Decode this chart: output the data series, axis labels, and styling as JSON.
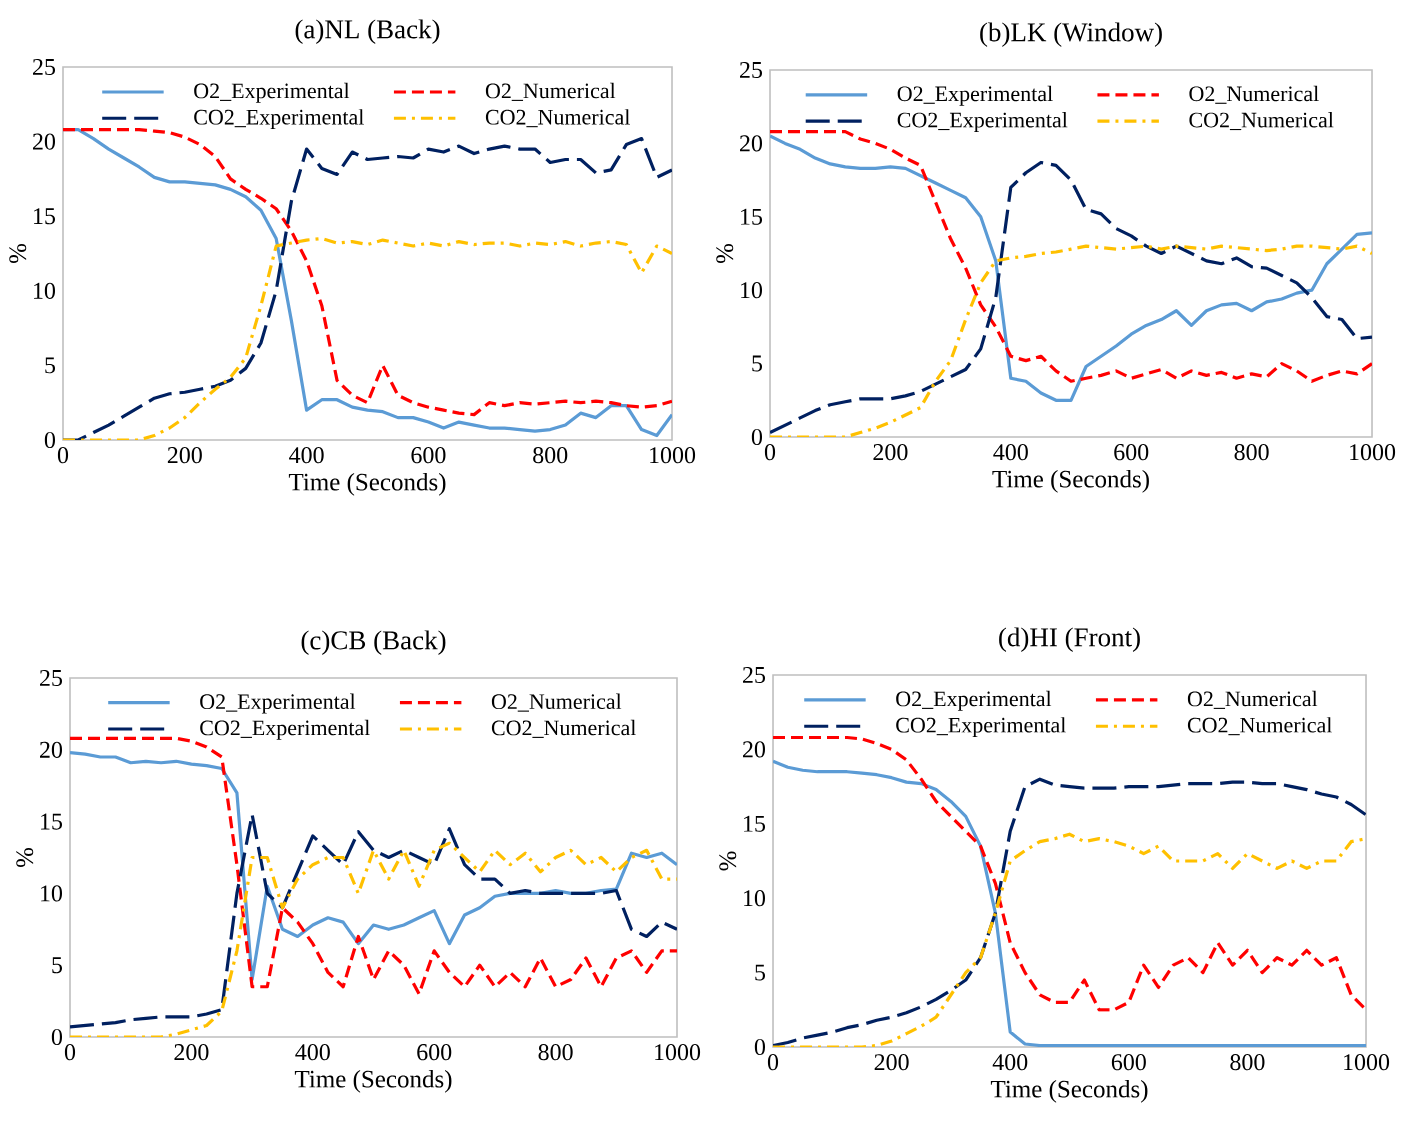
{
  "chart_data": [
    {
      "type": "line",
      "title": "(a)NL (Back)",
      "xlabel": "Time (Seconds)",
      "ylabel": "%",
      "xlim": [
        0,
        1000
      ],
      "ylim": [
        0,
        25
      ],
      "xticks": [
        0,
        200,
        400,
        600,
        800,
        1000
      ],
      "yticks": [
        0,
        5,
        10,
        15,
        20,
        25
      ],
      "grid": false,
      "legend": "top",
      "x": [
        0,
        25,
        50,
        75,
        100,
        125,
        150,
        175,
        200,
        225,
        250,
        275,
        300,
        325,
        350,
        375,
        400,
        425,
        450,
        475,
        500,
        525,
        550,
        575,
        600,
        625,
        650,
        675,
        700,
        725,
        750,
        775,
        800,
        825,
        850,
        875,
        900,
        925,
        950,
        975,
        1000
      ],
      "series": [
        {
          "name": "O2_Experimental",
          "color": "#5b9bd5",
          "line_style": "solid",
          "values": [
            20.8,
            20.8,
            20.2,
            19.5,
            18.9,
            18.3,
            17.6,
            17.3,
            17.3,
            17.2,
            17.1,
            16.8,
            16.3,
            15.4,
            13.5,
            8,
            2,
            2.7,
            2.7,
            2.2,
            2,
            1.9,
            1.5,
            1.5,
            1.2,
            0.8,
            1.2,
            1.0,
            0.8,
            0.8,
            0.7,
            0.6,
            0.7,
            1.0,
            1.8,
            1.5,
            2.3,
            2.3,
            0.7,
            0.3,
            1.7
          ]
        },
        {
          "name": "O2_Numerical",
          "color": "#ff0000",
          "line_style": "dashed",
          "values": [
            20.8,
            20.8,
            20.8,
            20.8,
            20.8,
            20.8,
            20.7,
            20.6,
            20.3,
            19.8,
            19,
            17.5,
            16.8,
            16.2,
            15.5,
            14,
            12,
            9,
            4,
            3,
            2.5,
            5,
            3,
            2.5,
            2.2,
            2,
            1.8,
            1.7,
            2.5,
            2.3,
            2.5,
            2.4,
            2.5,
            2.6,
            2.5,
            2.6,
            2.5,
            2.3,
            2.2,
            2.3,
            2.6
          ]
        },
        {
          "name": "CO2_Experimental",
          "color": "#002060",
          "line_style": "longdash",
          "values": [
            0,
            0,
            0.5,
            1,
            1.6,
            2.2,
            2.8,
            3.1,
            3.2,
            3.4,
            3.6,
            4,
            4.8,
            6.5,
            10,
            16,
            19.5,
            18.2,
            17.8,
            19.3,
            18.8,
            18.9,
            19,
            18.9,
            19.5,
            19.3,
            19.7,
            19.2,
            19.5,
            19.7,
            19.5,
            19.5,
            18.6,
            18.8,
            18.8,
            17.9,
            18.1,
            19.8,
            20.2,
            17.6,
            18.1
          ]
        },
        {
          "name": "CO2_Numerical",
          "color": "#ffc000",
          "line_style": "dashdot",
          "values": [
            0,
            0,
            0,
            0,
            0,
            0,
            0.3,
            0.8,
            1.5,
            2.5,
            3.4,
            4.2,
            5.5,
            9,
            13,
            13.2,
            13.4,
            13.5,
            13.2,
            13.3,
            13.1,
            13.4,
            13.2,
            13,
            13.2,
            13,
            13.3,
            13.1,
            13.2,
            13.2,
            13,
            13.2,
            13.1,
            13.3,
            13,
            13.2,
            13.3,
            13.1,
            11.2,
            13,
            12.5
          ]
        }
      ]
    },
    {
      "type": "line",
      "title": "(b)LK (Window)",
      "xlabel": "Time (Seconds)",
      "ylabel": "%",
      "xlim": [
        0,
        1000
      ],
      "ylim": [
        0,
        25
      ],
      "xticks": [
        0,
        200,
        400,
        600,
        800,
        1000
      ],
      "yticks": [
        0,
        5,
        10,
        15,
        20,
        25
      ],
      "grid": false,
      "legend": "top",
      "x": [
        0,
        25,
        50,
        75,
        100,
        125,
        150,
        175,
        200,
        225,
        250,
        275,
        300,
        325,
        350,
        375,
        400,
        425,
        450,
        475,
        500,
        525,
        550,
        575,
        600,
        625,
        650,
        675,
        700,
        725,
        750,
        775,
        800,
        825,
        850,
        875,
        900,
        925,
        950,
        975,
        1000
      ],
      "series": [
        {
          "name": "O2_Experimental",
          "color": "#5b9bd5",
          "line_style": "solid",
          "values": [
            20.5,
            20,
            19.6,
            19.0,
            18.6,
            18.4,
            18.3,
            18.3,
            18.4,
            18.3,
            17.8,
            17.3,
            16.8,
            16.3,
            15,
            12,
            4,
            3.8,
            3,
            2.5,
            2.5,
            4.8,
            5.5,
            6.2,
            7,
            7.6,
            8,
            8.6,
            7.6,
            8.6,
            9,
            9.1,
            8.6,
            9.2,
            9.4,
            9.8,
            10,
            11.8,
            12.8,
            13.8,
            13.9
          ]
        },
        {
          "name": "O2_Numerical",
          "color": "#ff0000",
          "line_style": "dashed",
          "values": [
            20.8,
            20.8,
            20.8,
            20.8,
            20.8,
            20.8,
            20.3,
            20,
            19.6,
            19,
            18.5,
            16,
            13.5,
            11.5,
            9,
            7.5,
            5.5,
            5.2,
            5.5,
            4.5,
            3.8,
            4,
            4.2,
            4.5,
            4,
            4.3,
            4.6,
            4,
            4.5,
            4.2,
            4.4,
            4,
            4.3,
            4.1,
            5,
            4.5,
            3.8,
            4.2,
            4.5,
            4.3,
            5
          ]
        },
        {
          "name": "CO2_Experimental",
          "color": "#002060",
          "line_style": "longdash",
          "values": [
            0.3,
            0.8,
            1.3,
            1.8,
            2.2,
            2.4,
            2.6,
            2.6,
            2.6,
            2.8,
            3.1,
            3.6,
            4.1,
            4.6,
            6,
            9.5,
            17,
            18,
            18.7,
            18.5,
            17.5,
            15.5,
            15.2,
            14.2,
            13.7,
            13,
            12.5,
            13,
            12.5,
            12,
            11.8,
            12.2,
            11.6,
            11.5,
            11,
            10.5,
            9.5,
            8.2,
            8,
            6.7,
            6.8
          ]
        },
        {
          "name": "CO2_Numerical",
          "color": "#ffc000",
          "line_style": "dashdot",
          "values": [
            0,
            0,
            0,
            0,
            0,
            0,
            0.3,
            0.6,
            1,
            1.5,
            2,
            3.8,
            5.2,
            8,
            10.5,
            12,
            12.2,
            12.3,
            12.5,
            12.6,
            12.8,
            13,
            12.9,
            12.8,
            12.9,
            13,
            12.8,
            13,
            12.9,
            12.8,
            13,
            12.9,
            12.8,
            12.7,
            12.8,
            13,
            13,
            12.9,
            12.8,
            13,
            12.5
          ]
        }
      ]
    },
    {
      "type": "line",
      "title": "(c)CB (Back)",
      "xlabel": "Time (Seconds)",
      "ylabel": "%",
      "xlim": [
        0,
        1000
      ],
      "ylim": [
        0,
        25
      ],
      "xticks": [
        0,
        200,
        400,
        600,
        800,
        1000
      ],
      "yticks": [
        0,
        5,
        10,
        15,
        20,
        25
      ],
      "grid": false,
      "legend": "top",
      "x": [
        0,
        25,
        50,
        75,
        100,
        125,
        150,
        175,
        200,
        225,
        250,
        275,
        300,
        325,
        350,
        375,
        400,
        425,
        450,
        475,
        500,
        525,
        550,
        575,
        600,
        625,
        650,
        675,
        700,
        725,
        750,
        775,
        800,
        825,
        850,
        875,
        900,
        925,
        950,
        975,
        1000
      ],
      "series": [
        {
          "name": "O2_Experimental",
          "color": "#5b9bd5",
          "line_style": "solid",
          "values": [
            19.8,
            19.7,
            19.5,
            19.5,
            19.1,
            19.2,
            19.1,
            19.2,
            19,
            18.9,
            18.7,
            17,
            4,
            10.5,
            7.5,
            7,
            7.8,
            8.3,
            8,
            6.5,
            7.8,
            7.5,
            7.8,
            8.3,
            8.8,
            6.5,
            8.5,
            9,
            9.8,
            10,
            10,
            10,
            10.2,
            10,
            10,
            10.2,
            10.3,
            12.8,
            12.5,
            12.8,
            12
          ]
        },
        {
          "name": "O2_Numerical",
          "color": "#ff0000",
          "line_style": "dashed",
          "values": [
            20.8,
            20.8,
            20.8,
            20.8,
            20.8,
            20.8,
            20.8,
            20.8,
            20.6,
            20.2,
            19.5,
            12,
            3.5,
            3.5,
            9,
            8,
            6.5,
            4.5,
            3.5,
            7,
            4,
            6,
            5,
            3,
            6,
            4.5,
            3.5,
            5,
            3.5,
            4.5,
            3.5,
            5.5,
            3.5,
            4,
            5.5,
            3.5,
            5.5,
            6,
            4.5,
            6,
            6
          ]
        },
        {
          "name": "CO2_Experimental",
          "color": "#002060",
          "line_style": "longdash",
          "values": [
            0.7,
            0.8,
            0.9,
            1,
            1.2,
            1.3,
            1.4,
            1.4,
            1.4,
            1.6,
            1.9,
            10,
            15.5,
            10,
            9,
            11.5,
            14,
            13,
            12,
            14.3,
            13,
            12.5,
            13,
            12.5,
            12,
            14.5,
            12,
            11,
            11,
            10,
            10.2,
            10,
            10,
            10,
            10,
            10,
            10.2,
            7.5,
            7,
            8,
            7.5
          ]
        },
        {
          "name": "CO2_Numerical",
          "color": "#ffc000",
          "line_style": "dashdot",
          "values": [
            0,
            0,
            0,
            0,
            0,
            0,
            0,
            0.2,
            0.5,
            0.8,
            1.8,
            6,
            12.5,
            12.5,
            9,
            11,
            12,
            12.5,
            12.5,
            10,
            13,
            11,
            13,
            10.5,
            13,
            13.5,
            12.5,
            11.5,
            13,
            12,
            12.8,
            11.5,
            12.5,
            13,
            12,
            12.5,
            11.5,
            12.5,
            13,
            11,
            11
          ]
        }
      ]
    },
    {
      "type": "line",
      "title": "(d)HI (Front)",
      "xlabel": "Time (Seconds)",
      "ylabel": "%",
      "xlim": [
        0,
        1000
      ],
      "ylim": [
        0,
        25
      ],
      "xticks": [
        0,
        200,
        400,
        600,
        800,
        1000
      ],
      "yticks": [
        0,
        5,
        10,
        15,
        20,
        25
      ],
      "grid": false,
      "legend": "top",
      "x": [
        0,
        25,
        50,
        75,
        100,
        125,
        150,
        175,
        200,
        225,
        250,
        275,
        300,
        325,
        350,
        375,
        400,
        425,
        450,
        475,
        500,
        525,
        550,
        575,
        600,
        625,
        650,
        675,
        700,
        725,
        750,
        775,
        800,
        825,
        850,
        875,
        900,
        925,
        950,
        975,
        1000
      ],
      "series": [
        {
          "name": "O2_Experimental",
          "color": "#5b9bd5",
          "line_style": "solid",
          "values": [
            19.2,
            18.8,
            18.6,
            18.5,
            18.5,
            18.5,
            18.4,
            18.3,
            18.1,
            17.8,
            17.7,
            17.3,
            16.5,
            15.5,
            13.5,
            9,
            1,
            0.2,
            0.1,
            0.1,
            0.1,
            0.1,
            0.1,
            0.1,
            0.1,
            0.1,
            0.1,
            0.1,
            0.1,
            0.1,
            0.1,
            0.1,
            0.1,
            0.1,
            0.1,
            0.1,
            0.1,
            0.1,
            0.1,
            0.1,
            0.1
          ]
        },
        {
          "name": "O2_Numerical",
          "color": "#ff0000",
          "line_style": "dashed",
          "values": [
            20.8,
            20.8,
            20.8,
            20.8,
            20.8,
            20.8,
            20.7,
            20.4,
            20,
            19.3,
            18,
            16.5,
            15.5,
            14.5,
            13.5,
            11,
            7,
            5,
            3.5,
            3,
            3,
            4.5,
            2.5,
            2.5,
            3,
            5.5,
            4,
            5.5,
            6,
            5,
            7,
            5.5,
            6.5,
            5,
            6,
            5.5,
            6.5,
            5.5,
            6,
            3.5,
            2.5
          ]
        },
        {
          "name": "CO2_Experimental",
          "color": "#002060",
          "line_style": "longdash",
          "values": [
            0.1,
            0.3,
            0.6,
            0.8,
            1,
            1.3,
            1.5,
            1.8,
            2,
            2.3,
            2.7,
            3.2,
            3.8,
            4.5,
            6,
            9,
            14.5,
            17.5,
            18,
            17.6,
            17.5,
            17.4,
            17.4,
            17.4,
            17.5,
            17.5,
            17.5,
            17.6,
            17.7,
            17.7,
            17.7,
            17.8,
            17.8,
            17.7,
            17.7,
            17.5,
            17.3,
            17,
            16.8,
            16.3,
            15.6
          ]
        },
        {
          "name": "CO2_Numerical",
          "color": "#ffc000",
          "line_style": "dashdot",
          "values": [
            0,
            0,
            0,
            0,
            0,
            0,
            0,
            0.1,
            0.4,
            0.9,
            1.4,
            2,
            3.5,
            5,
            6,
            9,
            12.5,
            13.2,
            13.8,
            14,
            14.3,
            13.8,
            14,
            13.8,
            13.5,
            13,
            13.5,
            12.5,
            12.5,
            12.5,
            13,
            12,
            13,
            12.5,
            12,
            12.5,
            12,
            12.5,
            12.5,
            13.8,
            14
          ]
        }
      ]
    }
  ]
}
